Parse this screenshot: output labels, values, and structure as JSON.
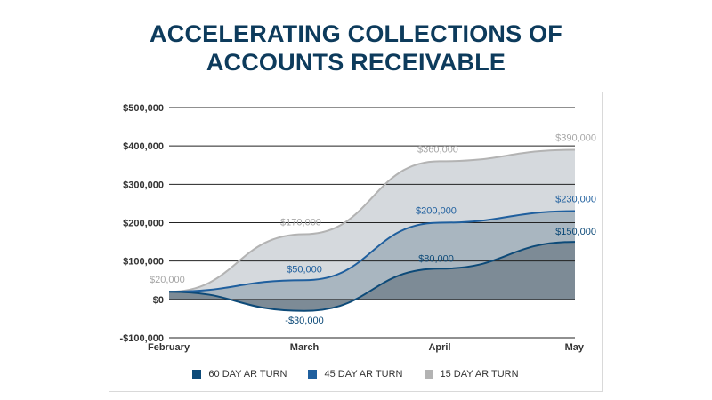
{
  "title": {
    "line1": "ACCELERATING COLLECTIONS OF",
    "line2": "ACCOUNTS RECEIVABLE"
  },
  "colors": {
    "title": "#0d3b5c",
    "series_60": "#0d4a78",
    "series_45": "#1f5f9e",
    "series_15": "#b3b3b3",
    "fill_15": "#d5d9dd",
    "fill_45": "#a9b6c0",
    "fill_60": "#7d8b96"
  },
  "chart_data": {
    "type": "area",
    "title": "ACCELERATING COLLECTIONS OF ACCOUNTS RECEIVABLE",
    "categories": [
      "February",
      "March",
      "April",
      "May"
    ],
    "ylim": [
      -100000,
      500000
    ],
    "yticks": [
      500000,
      400000,
      300000,
      200000,
      100000,
      0,
      -100000
    ],
    "ytick_labels": [
      "$500,000",
      "$400,000",
      "$300,000",
      "$200,000",
      "$100,000",
      "$0",
      "-$100,000"
    ],
    "grid": true,
    "legend_position": "bottom",
    "series": [
      {
        "name": "60 DAY AR TURN",
        "values": [
          20000,
          -30000,
          80000,
          150000
        ],
        "labels": [
          "",
          "-$30,000",
          "$80,000",
          "$150,000"
        ],
        "color": "#0d4a78"
      },
      {
        "name": "45 DAY AR TURN",
        "values": [
          20000,
          50000,
          200000,
          230000
        ],
        "labels": [
          "",
          "$50,000",
          "$200,000",
          "$230,000"
        ],
        "color": "#1f5f9e"
      },
      {
        "name": "15 DAY AR TURN",
        "values": [
          20000,
          170000,
          360000,
          390000
        ],
        "labels": [
          "$20,000",
          "$170,000",
          "$360,000",
          "$390,000"
        ],
        "color": "#b3b3b3"
      }
    ]
  }
}
